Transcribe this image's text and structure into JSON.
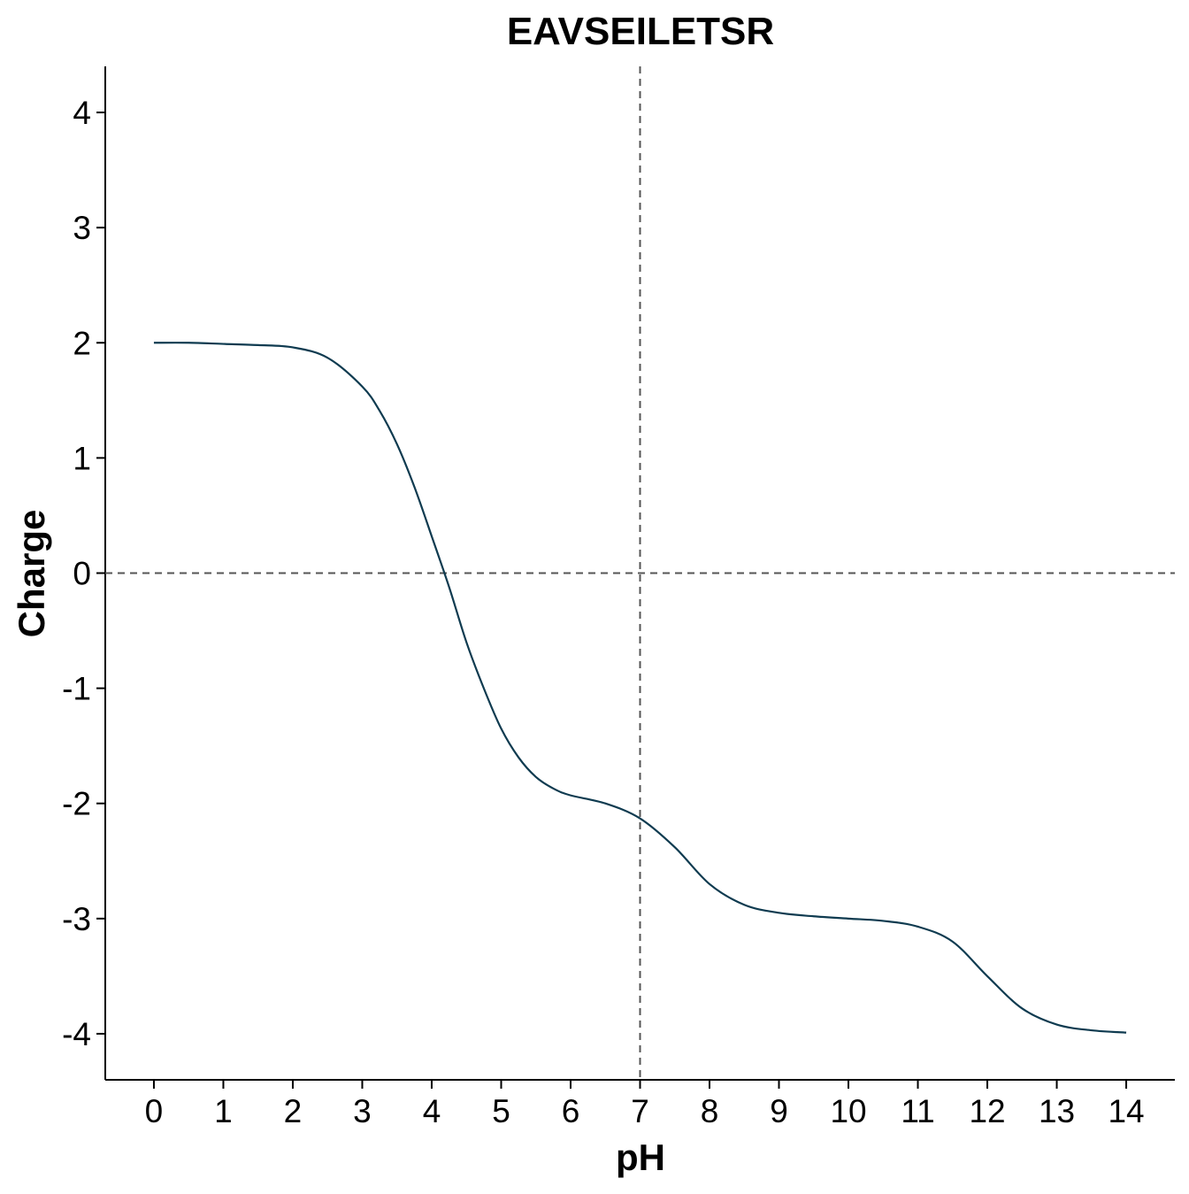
{
  "chart_data": {
    "type": "line",
    "title": "EAVSEILETSR",
    "xlabel": "pH",
    "ylabel": "Charge",
    "xlim": [
      -0.7,
      14.7
    ],
    "ylim": [
      -4.4,
      4.4
    ],
    "x_ticks": [
      0,
      1,
      2,
      3,
      4,
      5,
      6,
      7,
      8,
      9,
      10,
      11,
      12,
      13,
      14
    ],
    "x_tick_labels": [
      "0",
      "1",
      "2",
      "3",
      "4",
      "5",
      "6",
      "7",
      "8",
      "9",
      "10",
      "11",
      "12",
      "13",
      "14"
    ],
    "y_ticks": [
      -4,
      -3,
      -2,
      -1,
      0,
      1,
      2,
      3,
      4
    ],
    "y_tick_labels": [
      "-4",
      "-3",
      "-2",
      "-1",
      "0",
      "1",
      "2",
      "3",
      "4"
    ],
    "reference_lines": {
      "vertical_x": 7,
      "horizontal_y": 0,
      "style": "dashed",
      "color": "#555555"
    },
    "grid": false,
    "line_color": "#0f3b50",
    "series": [
      {
        "x": [
          0,
          0.5,
          1,
          1.5,
          2,
          2.5,
          3,
          3.25,
          3.5,
          3.75,
          4,
          4.25,
          4.5,
          4.75,
          5,
          5.25,
          5.5,
          5.75,
          6,
          6.5,
          7,
          7.5,
          8,
          8.5,
          9,
          9.5,
          10,
          10.5,
          11,
          11.5,
          12,
          12.5,
          13,
          13.5,
          14
        ],
        "y": [
          2.0,
          2.0,
          1.99,
          1.98,
          1.96,
          1.87,
          1.62,
          1.41,
          1.12,
          0.75,
          0.32,
          -0.12,
          -0.6,
          -1.0,
          -1.35,
          -1.6,
          -1.77,
          -1.87,
          -1.93,
          -2.0,
          -2.13,
          -2.38,
          -2.7,
          -2.88,
          -2.95,
          -2.98,
          -3.0,
          -3.02,
          -3.07,
          -3.2,
          -3.5,
          -3.78,
          -3.92,
          -3.97,
          -3.99
        ]
      }
    ]
  }
}
